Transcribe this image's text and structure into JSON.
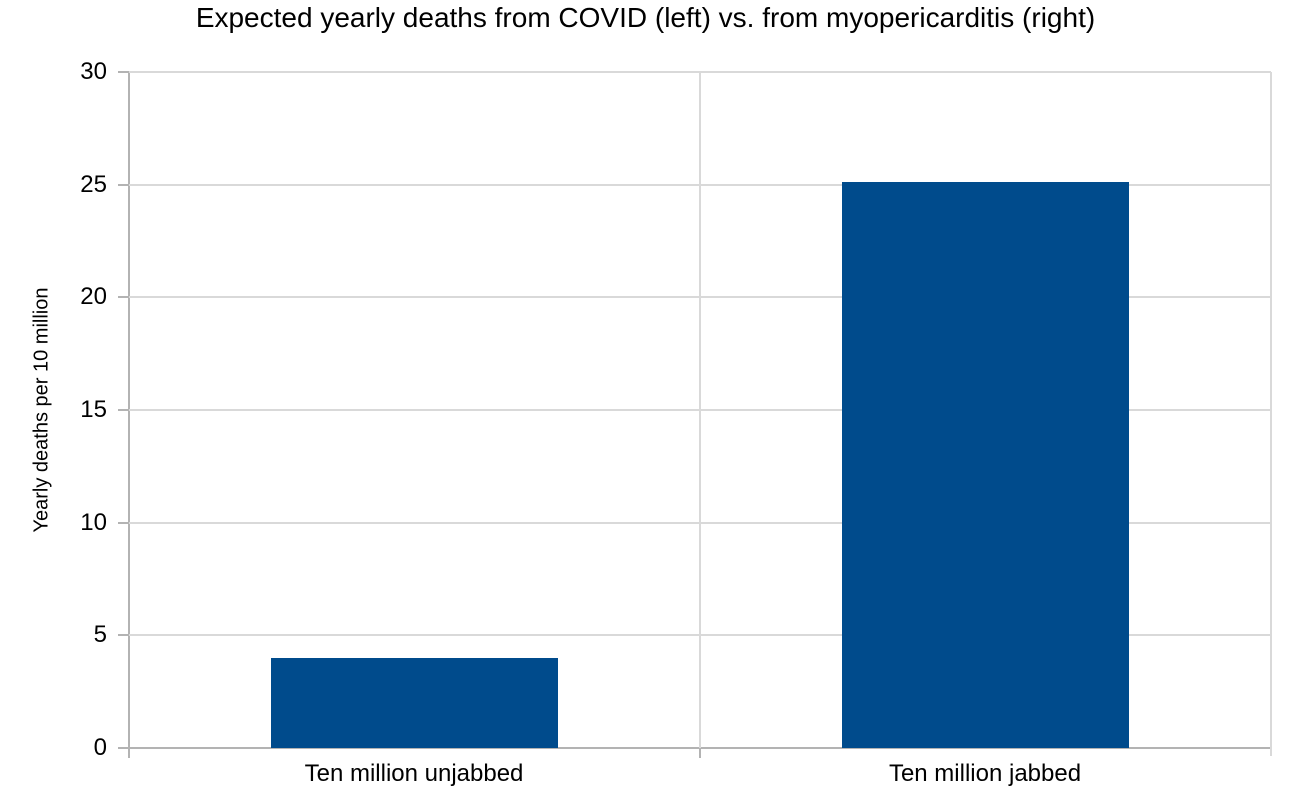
{
  "title": "Expected yearly deaths from COVID (left) vs. from myopericarditis (right)",
  "chart_data": {
    "type": "bar",
    "categories": [
      "Ten million unjabbed",
      "Ten million jabbed"
    ],
    "values": [
      4,
      25.1
    ],
    "title": "Expected yearly deaths from COVID (left) vs. from myopericarditis (right)",
    "xlabel": "",
    "ylabel": "Yearly deaths per 10 million",
    "ylim": [
      0,
      30
    ],
    "yticks": [
      0,
      5,
      10,
      15,
      20,
      25,
      30
    ],
    "grid": true,
    "legend": false,
    "bar_color": "#004b8c",
    "gridline_color": "#d9d9d9",
    "axis_color": "#b3b3b3",
    "text_color": "#000000"
  }
}
